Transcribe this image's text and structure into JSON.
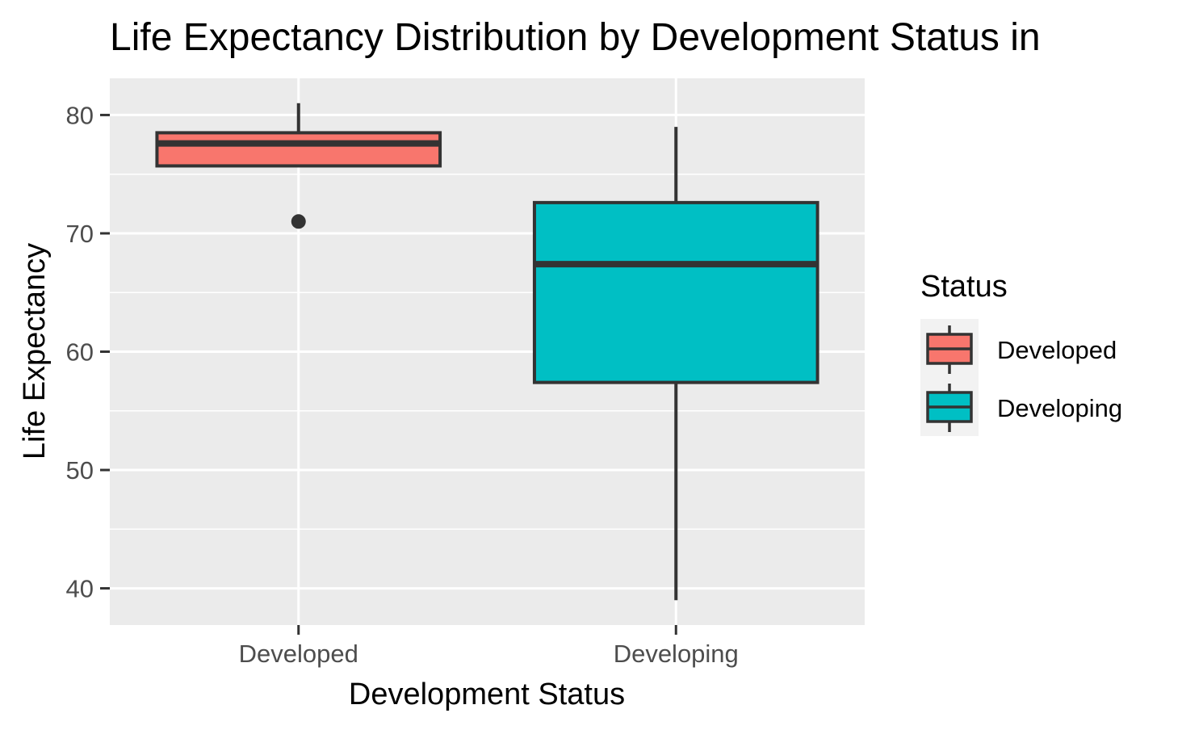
{
  "chart_data": {
    "type": "boxplot",
    "title": "Life Expectancy Distribution by Development Status in",
    "xlabel": "Development Status",
    "ylabel": "Life Expectancy",
    "categories": [
      "Developed",
      "Developing"
    ],
    "ylim": [
      36.9,
      83.1
    ],
    "yticks": [
      40,
      50,
      60,
      70,
      80
    ],
    "grid": true,
    "legend": {
      "title": "Status",
      "placement": "right",
      "entries": [
        "Developed",
        "Developing"
      ]
    },
    "series": [
      {
        "category": "Developed",
        "color": "#F8766D",
        "whisker_low": 75.6,
        "q1": 75.7,
        "median": 77.6,
        "q3": 78.5,
        "whisker_high": 81.0,
        "outliers": [
          71.0
        ]
      },
      {
        "category": "Developing",
        "color": "#00BFC4",
        "whisker_low": 39.0,
        "q1": 57.4,
        "median": 67.4,
        "q3": 72.6,
        "whisker_high": 79.0,
        "outliers": []
      }
    ]
  },
  "colors": {
    "panel_background": "#EBEBEB",
    "grid": "#FFFFFF",
    "box_outline": "#333333",
    "tick": "#333333"
  }
}
